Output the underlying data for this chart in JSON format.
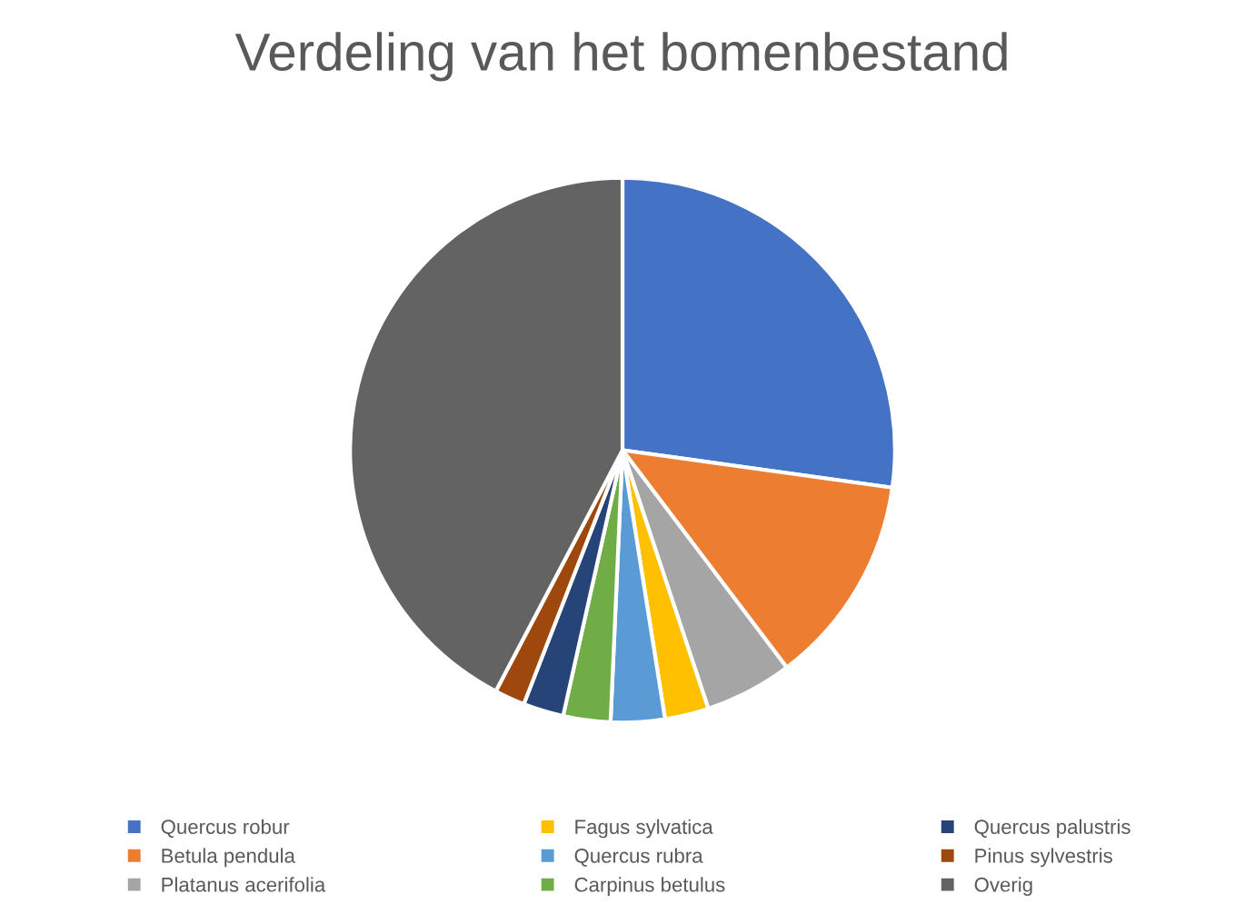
{
  "chart_data": {
    "type": "pie",
    "title": "Verdeling van het bomenbestand",
    "categories": [
      "Quercus robur",
      "Betula pendula",
      "Platanus acerifolia",
      "Fagus sylvatica",
      "Quercus rubra",
      "Carpinus betulus",
      "Quercus palustris",
      "Pinus sylvestris",
      "Overig"
    ],
    "values": [
      27.2,
      12.5,
      5.2,
      2.6,
      3.2,
      2.8,
      2.4,
      1.8,
      42.3
    ],
    "colors": [
      "#4472c4",
      "#ed7d31",
      "#a5a5a5",
      "#ffc000",
      "#5b9bd5",
      "#70ad47",
      "#264478",
      "#9e480e",
      "#636363"
    ],
    "legend": "bottom"
  }
}
